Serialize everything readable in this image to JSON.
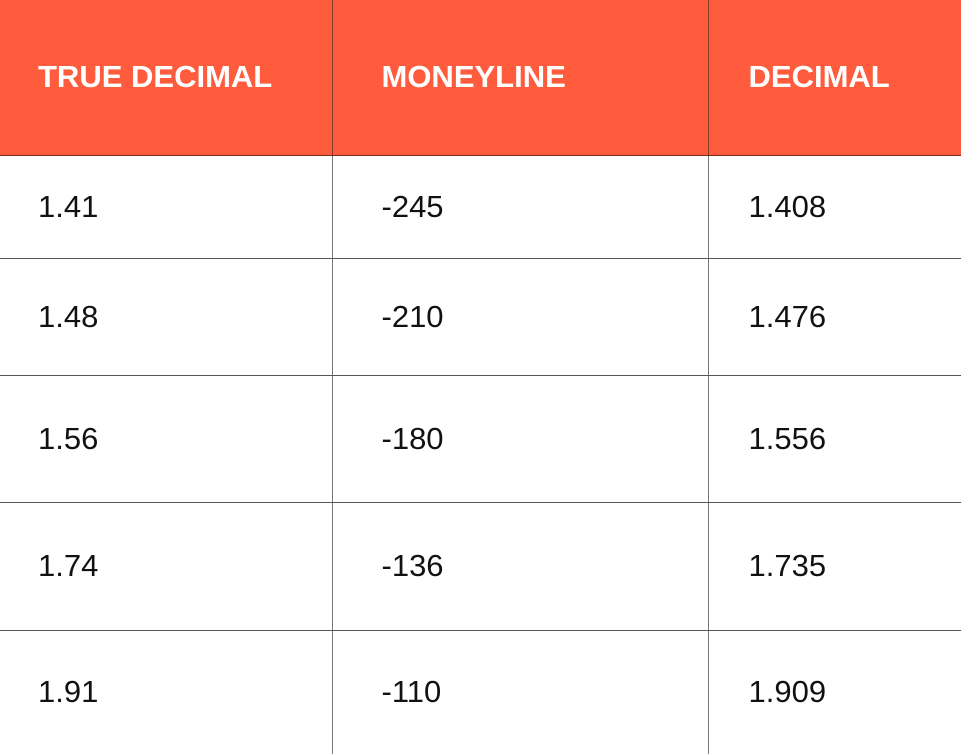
{
  "colors": {
    "header_bg": "#FF5C3E",
    "header_text": "#FFFFFF",
    "body_text": "#111111"
  },
  "table": {
    "headers": [
      "TRUE DECIMAL",
      "MONEYLINE",
      "DECIMAL"
    ],
    "rows": [
      [
        "1.41",
        "-245",
        "1.408"
      ],
      [
        "1.48",
        "-210",
        "1.476"
      ],
      [
        "1.56",
        "-180",
        "1.556"
      ],
      [
        "1.74",
        "-136",
        "1.735"
      ],
      [
        "1.91",
        "-110",
        "1.909"
      ]
    ]
  }
}
